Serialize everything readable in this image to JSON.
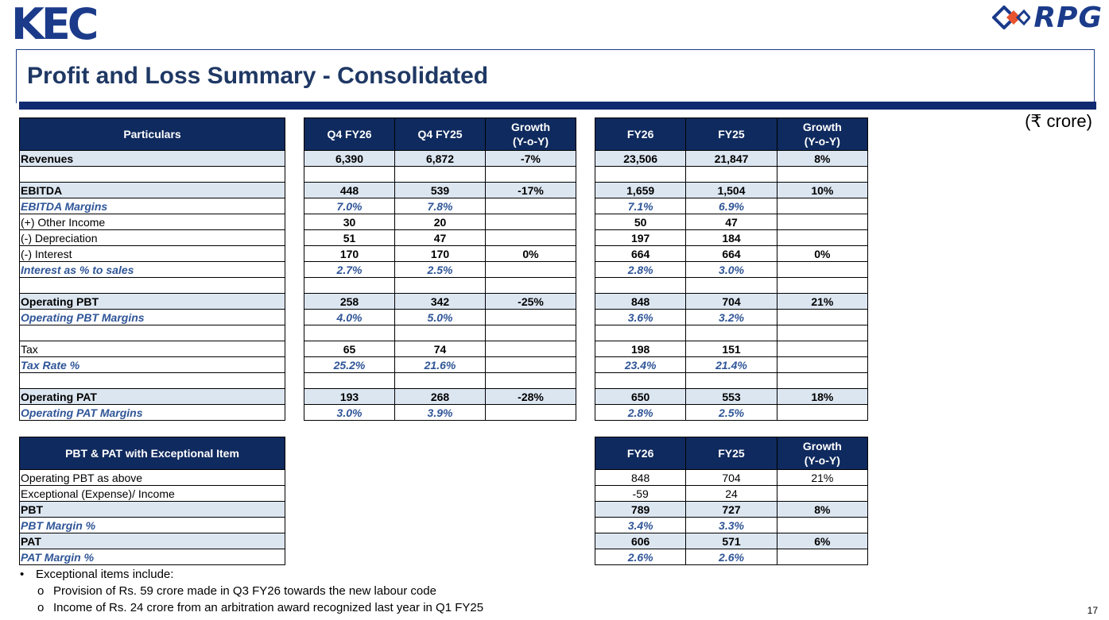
{
  "header": {
    "kec_logo": {
      "k": "K",
      "e": "E",
      "c": "C"
    },
    "rpg_logo": "RPG",
    "title": "Profit and Loss Summary - Consolidated",
    "unit": "(₹ crore)"
  },
  "pl_table": {
    "particulars_header": "Particulars",
    "quarter_headers": [
      "Q4 FY26",
      "Q4 FY25",
      "Growth (Y-o-Y)"
    ],
    "year_headers": [
      "FY26",
      "FY25",
      "Growth (Y-o-Y)"
    ],
    "rows": [
      {
        "label": "Revenues",
        "style": "hl bold",
        "q": [
          "6,390",
          "6,872",
          "-7%"
        ],
        "y": [
          "23,506",
          "21,847",
          "8%"
        ]
      },
      {
        "label": "",
        "style": "blank",
        "q": [
          "",
          "",
          ""
        ],
        "y": [
          "",
          "",
          ""
        ]
      },
      {
        "label": "EBITDA",
        "style": "hl bold",
        "q": [
          "448",
          "539",
          "-17%"
        ],
        "y": [
          "1,659",
          "1,504",
          "10%"
        ]
      },
      {
        "label": "EBITDA Margins",
        "style": "italic",
        "q": [
          "7.0%",
          "7.8%",
          ""
        ],
        "y": [
          "7.1%",
          "6.9%",
          ""
        ]
      },
      {
        "label": "(+) Other Income",
        "style": "",
        "q": [
          "30",
          "20",
          ""
        ],
        "y": [
          "50",
          "47",
          ""
        ]
      },
      {
        "label": "(-) Depreciation",
        "style": "",
        "q": [
          "51",
          "47",
          ""
        ],
        "y": [
          "197",
          "184",
          ""
        ]
      },
      {
        "label": "(-) Interest",
        "style": "",
        "q": [
          "170",
          "170",
          "0%"
        ],
        "y": [
          "664",
          "664",
          "0%"
        ]
      },
      {
        "label": " Interest as % to sales",
        "style": "italic",
        "q": [
          "2.7%",
          "2.5%",
          ""
        ],
        "y": [
          "2.8%",
          "3.0%",
          ""
        ]
      },
      {
        "label": "",
        "style": "blank",
        "q": [
          "",
          "",
          ""
        ],
        "y": [
          "",
          "",
          ""
        ]
      },
      {
        "label": "Operating PBT",
        "style": "hl bold",
        "q": [
          "258",
          "342",
          "-25%"
        ],
        "y": [
          "848",
          "704",
          "21%"
        ]
      },
      {
        "label": "Operating PBT Margins",
        "style": "italic",
        "q": [
          "4.0%",
          "5.0%",
          ""
        ],
        "y": [
          "3.6%",
          "3.2%",
          ""
        ]
      },
      {
        "label": "",
        "style": "blank",
        "q": [
          "",
          "",
          ""
        ],
        "y": [
          "",
          "",
          ""
        ]
      },
      {
        "label": "Tax",
        "style": "",
        "q": [
          "65",
          "74",
          ""
        ],
        "y": [
          "198",
          "151",
          ""
        ]
      },
      {
        "label": "Tax Rate %",
        "style": "italic",
        "q": [
          "25.2%",
          "21.6%",
          ""
        ],
        "y": [
          "23.4%",
          "21.4%",
          ""
        ]
      },
      {
        "label": "",
        "style": "blank",
        "q": [
          "",
          "",
          ""
        ],
        "y": [
          "",
          "",
          ""
        ]
      },
      {
        "label": "Operating PAT",
        "style": "hl bold",
        "q": [
          "193",
          "268",
          "-28%"
        ],
        "y": [
          "650",
          "553",
          "18%"
        ]
      },
      {
        "label": "Operating PAT Margins",
        "style": "italic",
        "q": [
          "3.0%",
          "3.9%",
          ""
        ],
        "y": [
          "2.8%",
          "2.5%",
          ""
        ]
      }
    ]
  },
  "exceptional_table": {
    "header": "PBT & PAT with Exceptional Item",
    "year_headers": [
      "FY26",
      "FY25",
      "Growth (Y-o-Y)"
    ],
    "rows": [
      {
        "label": "Operating PBT as above",
        "style": "plainrow",
        "y": [
          "848",
          "704",
          "21%"
        ]
      },
      {
        "label": "Exceptional (Expense)/ Income",
        "style": "plainrow",
        "y": [
          "-59",
          "24",
          ""
        ]
      },
      {
        "label": "PBT",
        "style": "hl bold",
        "y": [
          "789",
          "727",
          "8%"
        ]
      },
      {
        "label": "PBT Margin %",
        "style": "italic",
        "y": [
          "3.4%",
          "3.3%",
          ""
        ]
      },
      {
        "label": "PAT",
        "style": "hl bold",
        "y": [
          "606",
          "571",
          "6%"
        ]
      },
      {
        "label": "PAT Margin %",
        "style": "italic",
        "y": [
          "2.6%",
          "2.6%",
          ""
        ]
      }
    ]
  },
  "notes": {
    "bullet": "Exceptional items include:",
    "sub": [
      "Provision of Rs. 59 crore made in Q3 FY26 towards the new labour code",
      "Income of Rs. 24 crore from an arbitration award recognized last year in Q1 FY25"
    ]
  },
  "page_number": "17"
}
